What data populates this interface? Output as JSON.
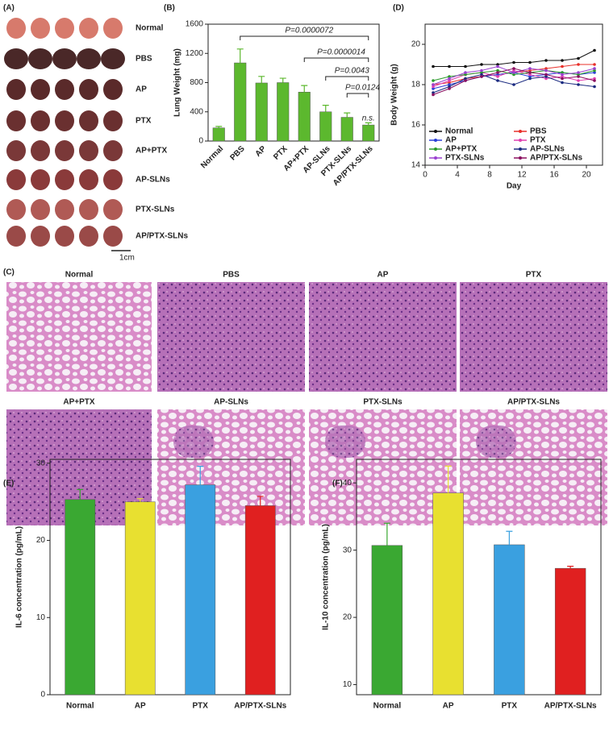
{
  "panel_a": {
    "panel": "(A)",
    "rows": [
      "Normal",
      "PBS",
      "AP",
      "PTX",
      "AP+PTX",
      "AP-SLNs",
      "PTX-SLNs",
      "AP/PTX-SLNs"
    ],
    "scale": "1cm"
  },
  "panel_c": {
    "panel": "(C)",
    "labels": [
      "Normal",
      "PBS",
      "AP",
      "PTX",
      "AP+PTX",
      "AP-SLNs",
      "PTX-SLNs",
      "AP/PTX-SLNs"
    ]
  },
  "chart_data": [
    {
      "type": "bar",
      "panel": "(B)",
      "ylabel": "Lung Weight (mg)",
      "categories": [
        "Normal",
        "PBS",
        "AP",
        "PTX",
        "AP+PTX",
        "AP-SLNs",
        "PTX-SLNs",
        "AP/PTX-SLNs"
      ],
      "values": [
        180,
        1070,
        795,
        800,
        670,
        400,
        325,
        220
      ],
      "errors": [
        20,
        190,
        90,
        60,
        90,
        90,
        60,
        30
      ],
      "color": "#5cb82e",
      "ylim": [
        0,
        1600
      ],
      "yticks": [
        0,
        400,
        800,
        1200,
        1600
      ],
      "annotations": [
        {
          "text": "P=0.0000072",
          "from": "PBS",
          "to": "AP/PTX-SLNs"
        },
        {
          "text": "P=0.0000014",
          "from": "AP+PTX",
          "to": "AP/PTX-SLNs"
        },
        {
          "text": "P=0.0043",
          "from": "AP-SLNs",
          "to": "AP/PTX-SLNs"
        },
        {
          "text": "P=0.0124",
          "from": "PTX-SLNs",
          "to": "AP/PTX-SLNs"
        },
        {
          "text": "n.s.",
          "from": "AP/PTX-SLNs",
          "to": "AP/PTX-SLNs"
        }
      ]
    },
    {
      "type": "line",
      "panel": "(D)",
      "xlabel": "Day",
      "ylabel": "Body Weight (g)",
      "x": [
        1,
        3,
        5,
        7,
        9,
        11,
        13,
        15,
        17,
        19,
        21
      ],
      "xlim": [
        0,
        22
      ],
      "xticks": [
        0,
        4,
        8,
        12,
        16,
        20
      ],
      "ylim": [
        14,
        21
      ],
      "yticks": [
        14,
        16,
        18,
        20
      ],
      "legend": "lower",
      "series": [
        {
          "name": "Normal",
          "color": "#111111",
          "values": [
            18.9,
            18.9,
            18.9,
            19.0,
            19.0,
            19.1,
            19.1,
            19.2,
            19.2,
            19.3,
            19.7
          ]
        },
        {
          "name": "PBS",
          "color": "#e8302a",
          "values": [
            18.0,
            18.1,
            18.3,
            18.4,
            18.5,
            18.6,
            18.7,
            18.8,
            18.9,
            19.0,
            19.0
          ]
        },
        {
          "name": "AP",
          "color": "#2a3fd8",
          "values": [
            17.8,
            18.0,
            18.2,
            18.4,
            18.5,
            18.6,
            18.4,
            18.5,
            18.6,
            18.5,
            18.6
          ]
        },
        {
          "name": "PTX",
          "color": "#e040b0",
          "values": [
            17.9,
            18.2,
            18.5,
            18.6,
            18.4,
            18.7,
            18.5,
            18.3,
            18.4,
            18.2,
            18.3
          ]
        },
        {
          "name": "AP+PTX",
          "color": "#2a9a2a",
          "values": [
            18.2,
            18.4,
            18.5,
            18.6,
            18.7,
            18.5,
            18.6,
            18.7,
            18.6,
            18.5,
            18.7
          ]
        },
        {
          "name": "AP-SLNs",
          "color": "#1a2a80",
          "values": [
            17.6,
            17.9,
            18.3,
            18.5,
            18.2,
            18.0,
            18.3,
            18.4,
            18.1,
            18.0,
            17.9
          ]
        },
        {
          "name": "PTX-SLNs",
          "color": "#9a40d0",
          "values": [
            18.0,
            18.3,
            18.6,
            18.7,
            18.9,
            18.6,
            18.8,
            18.7,
            18.5,
            18.6,
            18.8
          ]
        },
        {
          "name": "AP/PTX-SLNs",
          "color": "#8a1060",
          "values": [
            17.5,
            17.8,
            18.2,
            18.4,
            18.6,
            18.8,
            18.6,
            18.5,
            18.3,
            18.4,
            18.2
          ]
        }
      ]
    },
    {
      "type": "bar",
      "panel": "(E)",
      "ylabel": "IL-6 concentration (pg/mL)",
      "categories": [
        "Normal",
        "AP",
        "PTX",
        "AP/PTX-SLNs"
      ],
      "values": [
        25.3,
        25.0,
        27.2,
        24.5
      ],
      "errors": [
        1.3,
        0.4,
        2.4,
        1.2
      ],
      "colors": [
        "#3aa832",
        "#e8e030",
        "#3aa0e0",
        "#e02020"
      ],
      "ylim": [
        0,
        30.5
      ],
      "yticks": [
        0,
        10,
        20,
        30
      ]
    },
    {
      "type": "bar",
      "panel": "(F)",
      "ylabel": "IL-10 concentration (pg/mL)",
      "categories": [
        "Normal",
        "AP",
        "PTX",
        "AP/PTX-SLNs"
      ],
      "values": [
        30.7,
        38.5,
        30.8,
        27.3
      ],
      "errors": [
        3.3,
        4.0,
        2.0,
        0.3
      ],
      "colors": [
        "#3aa832",
        "#e8e030",
        "#3aa0e0",
        "#e02020"
      ],
      "ylim": [
        8.5,
        43.5
      ],
      "yticks": [
        10,
        20,
        30,
        40
      ]
    }
  ]
}
